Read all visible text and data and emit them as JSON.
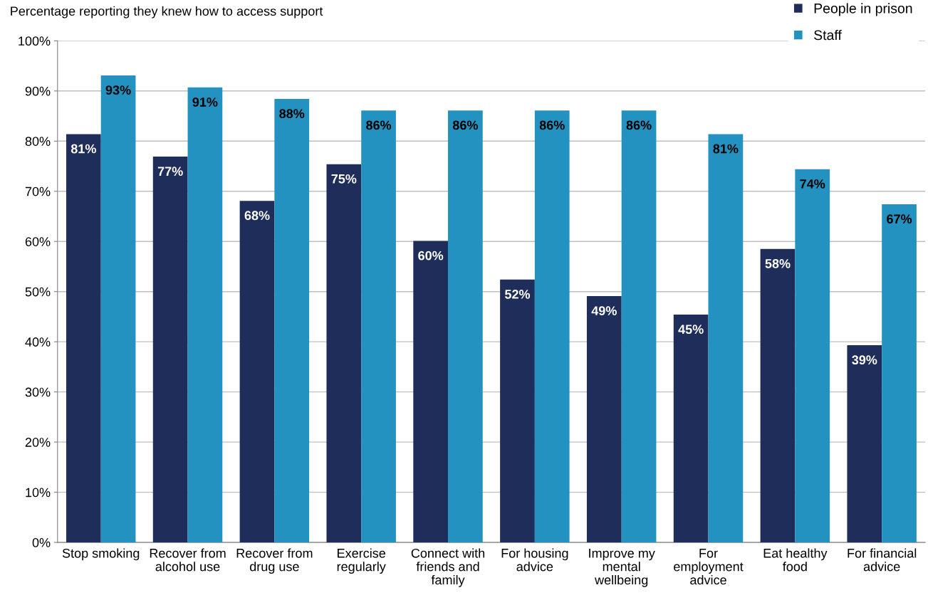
{
  "chart_data": {
    "type": "bar",
    "ylabel": "Percentage reporting they knew how to access support",
    "categories": [
      "Stop smoking",
      "Recover from\nalcohol use",
      "Recover from\ndrug use",
      "Exercise\nregularly",
      "Connect with\nfriends and\nfamily",
      "For housing\nadvice",
      "Improve my\nmental\nwellbeing",
      "For\nemployment\nadvice",
      "Eat healthy\nfood",
      "For financial\nadvice"
    ],
    "series": [
      {
        "name": "People in prison",
        "color": "#1f2d5a",
        "values": [
          81.4,
          76.9,
          68.1,
          75.4,
          60.1,
          52.4,
          49.1,
          45.4,
          58.5,
          39.3
        ],
        "value_labels": [
          "81%",
          "77%",
          "68%",
          "75%",
          "60%",
          "52%",
          "49%",
          "45%",
          "58%",
          "39%"
        ]
      },
      {
        "name": "Staff",
        "color": "#2492c0",
        "values": [
          93.1,
          90.7,
          88.4,
          86.1,
          86.1,
          86.1,
          86.1,
          81.4,
          74.4,
          67.4
        ],
        "value_labels": [
          "93%",
          "91%",
          "88%",
          "86%",
          "86%",
          "86%",
          "86%",
          "81%",
          "74%",
          "67%"
        ]
      }
    ],
    "ylim": [
      0,
      100
    ],
    "yticks": [
      {
        "value": 0,
        "label": "0%"
      },
      {
        "value": 10,
        "label": "10%"
      },
      {
        "value": 20,
        "label": "20%"
      },
      {
        "value": 30,
        "label": "30%"
      },
      {
        "value": 40,
        "label": "40%"
      },
      {
        "value": 50,
        "label": "50%"
      },
      {
        "value": 60,
        "label": "60%"
      },
      {
        "value": 70,
        "label": "70%"
      },
      {
        "value": 80,
        "label": "80%"
      },
      {
        "value": 90,
        "label": "90%"
      },
      {
        "value": 100,
        "label": "100%"
      }
    ],
    "grid": "y",
    "legend": "top right"
  }
}
